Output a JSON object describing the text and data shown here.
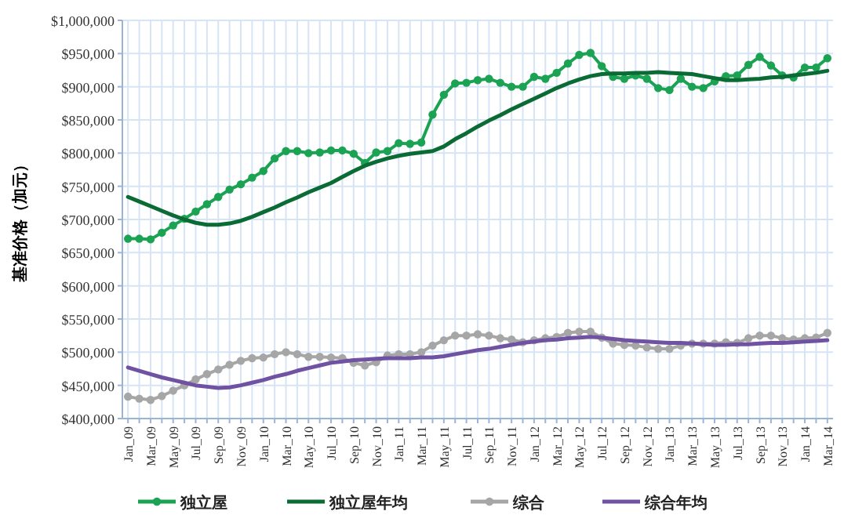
{
  "chart_data": {
    "type": "line",
    "ylabel": "基准价格（加元）",
    "categories": [
      "Jan_09",
      null,
      "Mar_09",
      null,
      "May_09",
      null,
      "Jul_09",
      null,
      "Sep_09",
      null,
      "Nov_09",
      null,
      "Jan_10",
      null,
      "Mar_10",
      null,
      "May_10",
      null,
      "Jul_10",
      null,
      "Sep_10",
      null,
      "Nov_10",
      null,
      "Jan_11",
      null,
      "Mar_11",
      null,
      "May_11",
      null,
      "Jul_11",
      null,
      "Sep_11",
      null,
      "Nov_11",
      null,
      "Jan_12",
      null,
      "Mar_12",
      null,
      "May_12",
      null,
      "Jul_12",
      null,
      "Sep_12",
      null,
      "Nov_12",
      null,
      "Jan_13",
      null,
      "Mar_13",
      null,
      "May_13",
      null,
      "Jul_13",
      null,
      "Sep_13",
      null,
      "Nov_13",
      null,
      "Jan_14",
      null,
      "Mar_14"
    ],
    "series": [
      {
        "name": "独立屋",
        "color": "#1ba353",
        "marker": "circle",
        "values": [
          671000,
          671000,
          670000,
          680000,
          691000,
          701000,
          712000,
          723000,
          734000,
          745000,
          753000,
          763000,
          773000,
          792000,
          803000,
          803000,
          800000,
          801000,
          804000,
          804000,
          799000,
          785000,
          801000,
          803000,
          815000,
          814000,
          816000,
          858000,
          888000,
          905000,
          906000,
          910000,
          912000,
          906000,
          900000,
          900000,
          915000,
          912000,
          921000,
          935000,
          948000,
          951000,
          931000,
          915000,
          912000,
          917000,
          912000,
          898000,
          895000,
          912000,
          900000,
          898000,
          908000,
          916000,
          917000,
          933000,
          945000,
          932000,
          917000,
          914000,
          929000,
          929000,
          943000
        ]
      },
      {
        "name": "独立屋年均",
        "color": "#0b6b35",
        "marker": "none",
        "values": [
          734000,
          727000,
          720000,
          713000,
          706000,
          700000,
          695000,
          692000,
          692000,
          694000,
          698000,
          704000,
          711000,
          718000,
          726000,
          733000,
          741000,
          748000,
          755000,
          764000,
          773000,
          781000,
          787000,
          792000,
          796000,
          799000,
          801000,
          803000,
          810000,
          821000,
          830000,
          840000,
          849000,
          857000,
          866000,
          874000,
          882000,
          890000,
          898000,
          905000,
          911000,
          916000,
          919000,
          920000,
          920000,
          921000,
          921000,
          922000,
          921000,
          920000,
          919000,
          916000,
          913000,
          910000,
          910000,
          911000,
          912000,
          914000,
          915000,
          917000,
          919000,
          921000,
          924000
        ]
      },
      {
        "name": "综合",
        "color": "#a6a6a6",
        "marker": "circle",
        "values": [
          433000,
          430000,
          428000,
          434000,
          442000,
          450000,
          459000,
          467000,
          474000,
          481000,
          487000,
          491000,
          492000,
          497000,
          500000,
          497000,
          493000,
          493000,
          492000,
          491000,
          484000,
          480000,
          485000,
          495000,
          497000,
          497000,
          500000,
          510000,
          518000,
          525000,
          525000,
          527000,
          525000,
          521000,
          519000,
          515000,
          518000,
          521000,
          523000,
          529000,
          531000,
          531000,
          522000,
          513000,
          511000,
          510000,
          507000,
          505000,
          505000,
          510000,
          513000,
          513000,
          513000,
          515000,
          514000,
          521000,
          525000,
          525000,
          521000,
          519000,
          521000,
          522000,
          529000
        ]
      },
      {
        "name": "综合年均",
        "color": "#7052a2",
        "marker": "none",
        "values": [
          477000,
          472000,
          467000,
          462000,
          458000,
          454000,
          450000,
          448000,
          446000,
          447000,
          450000,
          454000,
          458000,
          463000,
          467000,
          472000,
          476000,
          480000,
          484000,
          486000,
          488000,
          489000,
          490000,
          491000,
          491000,
          491000,
          492000,
          492000,
          494000,
          497000,
          500000,
          503000,
          505000,
          508000,
          511000,
          514000,
          516000,
          518000,
          519000,
          521000,
          522000,
          523000,
          522000,
          520000,
          518000,
          517000,
          516000,
          515000,
          514000,
          514000,
          513000,
          512000,
          511000,
          511000,
          512000,
          512000,
          513000,
          514000,
          514000,
          515000,
          516000,
          517000,
          518000
        ]
      }
    ],
    "ylim": [
      400000,
      1000000
    ],
    "yticks": [
      {
        "value": 400000,
        "label": "$400,000"
      },
      {
        "value": 450000,
        "label": "$450,000"
      },
      {
        "value": 500000,
        "label": "$500,000"
      },
      {
        "value": 550000,
        "label": "$550,000"
      },
      {
        "value": 600000,
        "label": "$600,000"
      },
      {
        "value": 650000,
        "label": "$650,000"
      },
      {
        "value": 700000,
        "label": "$700,000"
      },
      {
        "value": 750000,
        "label": "$750,000"
      },
      {
        "value": 800000,
        "label": "$800,000"
      },
      {
        "value": 850000,
        "label": "$850,000"
      },
      {
        "value": 900000,
        "label": "$900,000"
      },
      {
        "value": 950000,
        "label": "$950,000"
      },
      {
        "value": 1000000,
        "label": "$1,000,000"
      }
    ],
    "grid": true,
    "legend": "bottom"
  }
}
